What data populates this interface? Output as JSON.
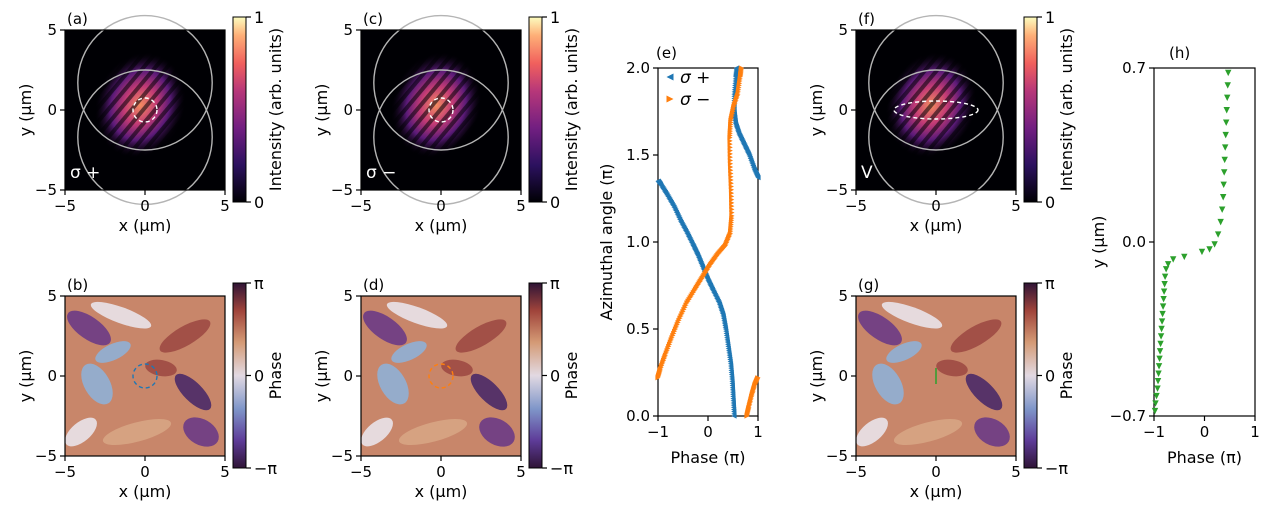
{
  "panels": {
    "a": {
      "label": "(a)",
      "polarization": "σ +",
      "colorbar_label": "Intensity (arb. units)",
      "colorbar_ticks": [
        "1",
        "0"
      ]
    },
    "b": {
      "label": "(b)",
      "colorbar_label": "Phase",
      "colorbar_ticks": [
        "π",
        "0",
        "−π"
      ]
    },
    "c": {
      "label": "(c)",
      "polarization": "σ −",
      "colorbar_label": "Intensity (arb. units)",
      "colorbar_ticks": [
        "1",
        "0"
      ]
    },
    "d": {
      "label": "(d)",
      "colorbar_label": "Phase",
      "colorbar_ticks": [
        "π",
        "0",
        "−π"
      ]
    },
    "e": {
      "label": "(e)"
    },
    "f": {
      "label": "(f)",
      "polarization": "V",
      "colorbar_label": "Intensity (arb. units)",
      "colorbar_ticks": [
        "1",
        "0"
      ]
    },
    "g": {
      "label": "(g)",
      "colorbar_label": "Phase",
      "colorbar_ticks": [
        "π",
        "0",
        "−π"
      ]
    },
    "h": {
      "label": "(h)"
    }
  },
  "map_axes": {
    "xlabel": "x (μm)",
    "ylabel": "y (μm)",
    "xticks": [
      "−5",
      "0",
      "5"
    ],
    "yticks": [
      "5",
      "0",
      "−5"
    ]
  },
  "colors": {
    "sigma_plus": "#1f77b4",
    "sigma_minus": "#ff7f0e",
    "profile": "#2ca02c",
    "ring": "#b4b4b4"
  },
  "chart_data": [
    {
      "type": "line",
      "panel": "e",
      "xlabel": "Phase (π)",
      "ylabel": "Azimuthal angle (π)",
      "xlim": [
        -1,
        1
      ],
      "ylim": [
        0,
        2
      ],
      "xticks": [
        "−1",
        "0",
        "1"
      ],
      "yticks": [
        "2.0",
        "1.5",
        "1.0",
        "0.5",
        "0.0"
      ],
      "legend": "top-left",
      "series": [
        {
          "name": "σ +",
          "marker": "triangle-left",
          "segments": [
            [
              [
                0.52,
                0.0
              ],
              [
                0.5,
                0.1
              ],
              [
                0.48,
                0.2
              ],
              [
                0.45,
                0.3
              ],
              [
                0.4,
                0.4
              ],
              [
                0.35,
                0.5
              ],
              [
                0.3,
                0.58
              ],
              [
                0.22,
                0.65
              ],
              [
                0.1,
                0.72
              ],
              [
                0.0,
                0.78
              ],
              [
                -0.1,
                0.85
              ],
              [
                -0.2,
                0.92
              ],
              [
                -0.3,
                0.98
              ],
              [
                -0.42,
                1.05
              ],
              [
                -0.55,
                1.12
              ],
              [
                -0.68,
                1.2
              ],
              [
                -0.82,
                1.27
              ],
              [
                -0.95,
                1.33
              ],
              [
                -1.0,
                1.35
              ]
            ],
            [
              [
                1.0,
                1.37
              ],
              [
                0.92,
                1.42
              ],
              [
                0.82,
                1.5
              ],
              [
                0.72,
                1.56
              ],
              [
                0.62,
                1.62
              ],
              [
                0.55,
                1.68
              ],
              [
                0.52,
                1.75
              ],
              [
                0.52,
                1.85
              ],
              [
                0.55,
                1.95
              ],
              [
                0.57,
                2.0
              ]
            ]
          ]
        },
        {
          "name": "σ −",
          "marker": "triangle-right",
          "segments": [
            [
              [
                -1.0,
                0.22
              ],
              [
                -0.95,
                0.27
              ],
              [
                -0.85,
                0.35
              ],
              [
                -0.72,
                0.45
              ],
              [
                -0.58,
                0.55
              ],
              [
                -0.42,
                0.65
              ],
              [
                -0.25,
                0.73
              ],
              [
                -0.1,
                0.8
              ],
              [
                0.05,
                0.87
              ],
              [
                0.2,
                0.93
              ],
              [
                0.35,
                0.98
              ],
              [
                0.45,
                1.05
              ],
              [
                0.48,
                1.15
              ],
              [
                0.47,
                1.3
              ],
              [
                0.45,
                1.45
              ],
              [
                0.44,
                1.6
              ],
              [
                0.46,
                1.7
              ],
              [
                0.52,
                1.78
              ],
              [
                0.6,
                1.85
              ],
              [
                0.65,
                1.95
              ],
              [
                0.67,
                2.0
              ]
            ],
            [
              [
                0.78,
                0.0
              ],
              [
                0.82,
                0.05
              ],
              [
                0.88,
                0.12
              ],
              [
                0.94,
                0.18
              ],
              [
                1.0,
                0.22
              ]
            ]
          ]
        }
      ]
    },
    {
      "type": "scatter",
      "panel": "h",
      "xlabel": "Phase (π)",
      "ylabel": "y (μm)",
      "xlim": [
        -1,
        1
      ],
      "ylim": [
        -0.7,
        0.7
      ],
      "xticks": [
        "−1",
        "0",
        "1"
      ],
      "yticks": [
        "0.7",
        "0.0",
        "−0.7"
      ],
      "series": [
        {
          "name": "",
          "marker": "triangle-down",
          "points": [
            [
              -0.98,
              -0.68
            ],
            [
              -0.97,
              -0.65
            ],
            [
              -0.95,
              -0.62
            ],
            [
              -0.93,
              -0.59
            ],
            [
              -0.92,
              -0.56
            ],
            [
              -0.91,
              -0.53
            ],
            [
              -0.9,
              -0.5
            ],
            [
              -0.89,
              -0.47
            ],
            [
              -0.88,
              -0.44
            ],
            [
              -0.87,
              -0.41
            ],
            [
              -0.86,
              -0.38
            ],
            [
              -0.85,
              -0.35
            ],
            [
              -0.84,
              -0.32
            ],
            [
              -0.83,
              -0.29
            ],
            [
              -0.82,
              -0.26
            ],
            [
              -0.81,
              -0.23
            ],
            [
              -0.8,
              -0.2
            ],
            [
              -0.79,
              -0.17
            ],
            [
              -0.78,
              -0.14
            ],
            [
              -0.76,
              -0.11
            ],
            [
              -0.72,
              -0.09
            ],
            [
              -0.62,
              -0.07
            ],
            [
              -0.4,
              -0.06
            ],
            [
              -0.05,
              -0.04
            ],
            [
              0.1,
              -0.03
            ],
            [
              0.2,
              -0.01
            ],
            [
              0.27,
              0.03
            ],
            [
              0.32,
              0.08
            ],
            [
              0.35,
              0.13
            ],
            [
              0.37,
              0.18
            ],
            [
              0.38,
              0.23
            ],
            [
              0.39,
              0.28
            ],
            [
              0.4,
              0.33
            ],
            [
              0.41,
              0.38
            ],
            [
              0.42,
              0.43
            ],
            [
              0.43,
              0.48
            ],
            [
              0.44,
              0.53
            ],
            [
              0.45,
              0.58
            ],
            [
              0.46,
              0.63
            ],
            [
              0.47,
              0.68
            ]
          ]
        }
      ]
    }
  ]
}
